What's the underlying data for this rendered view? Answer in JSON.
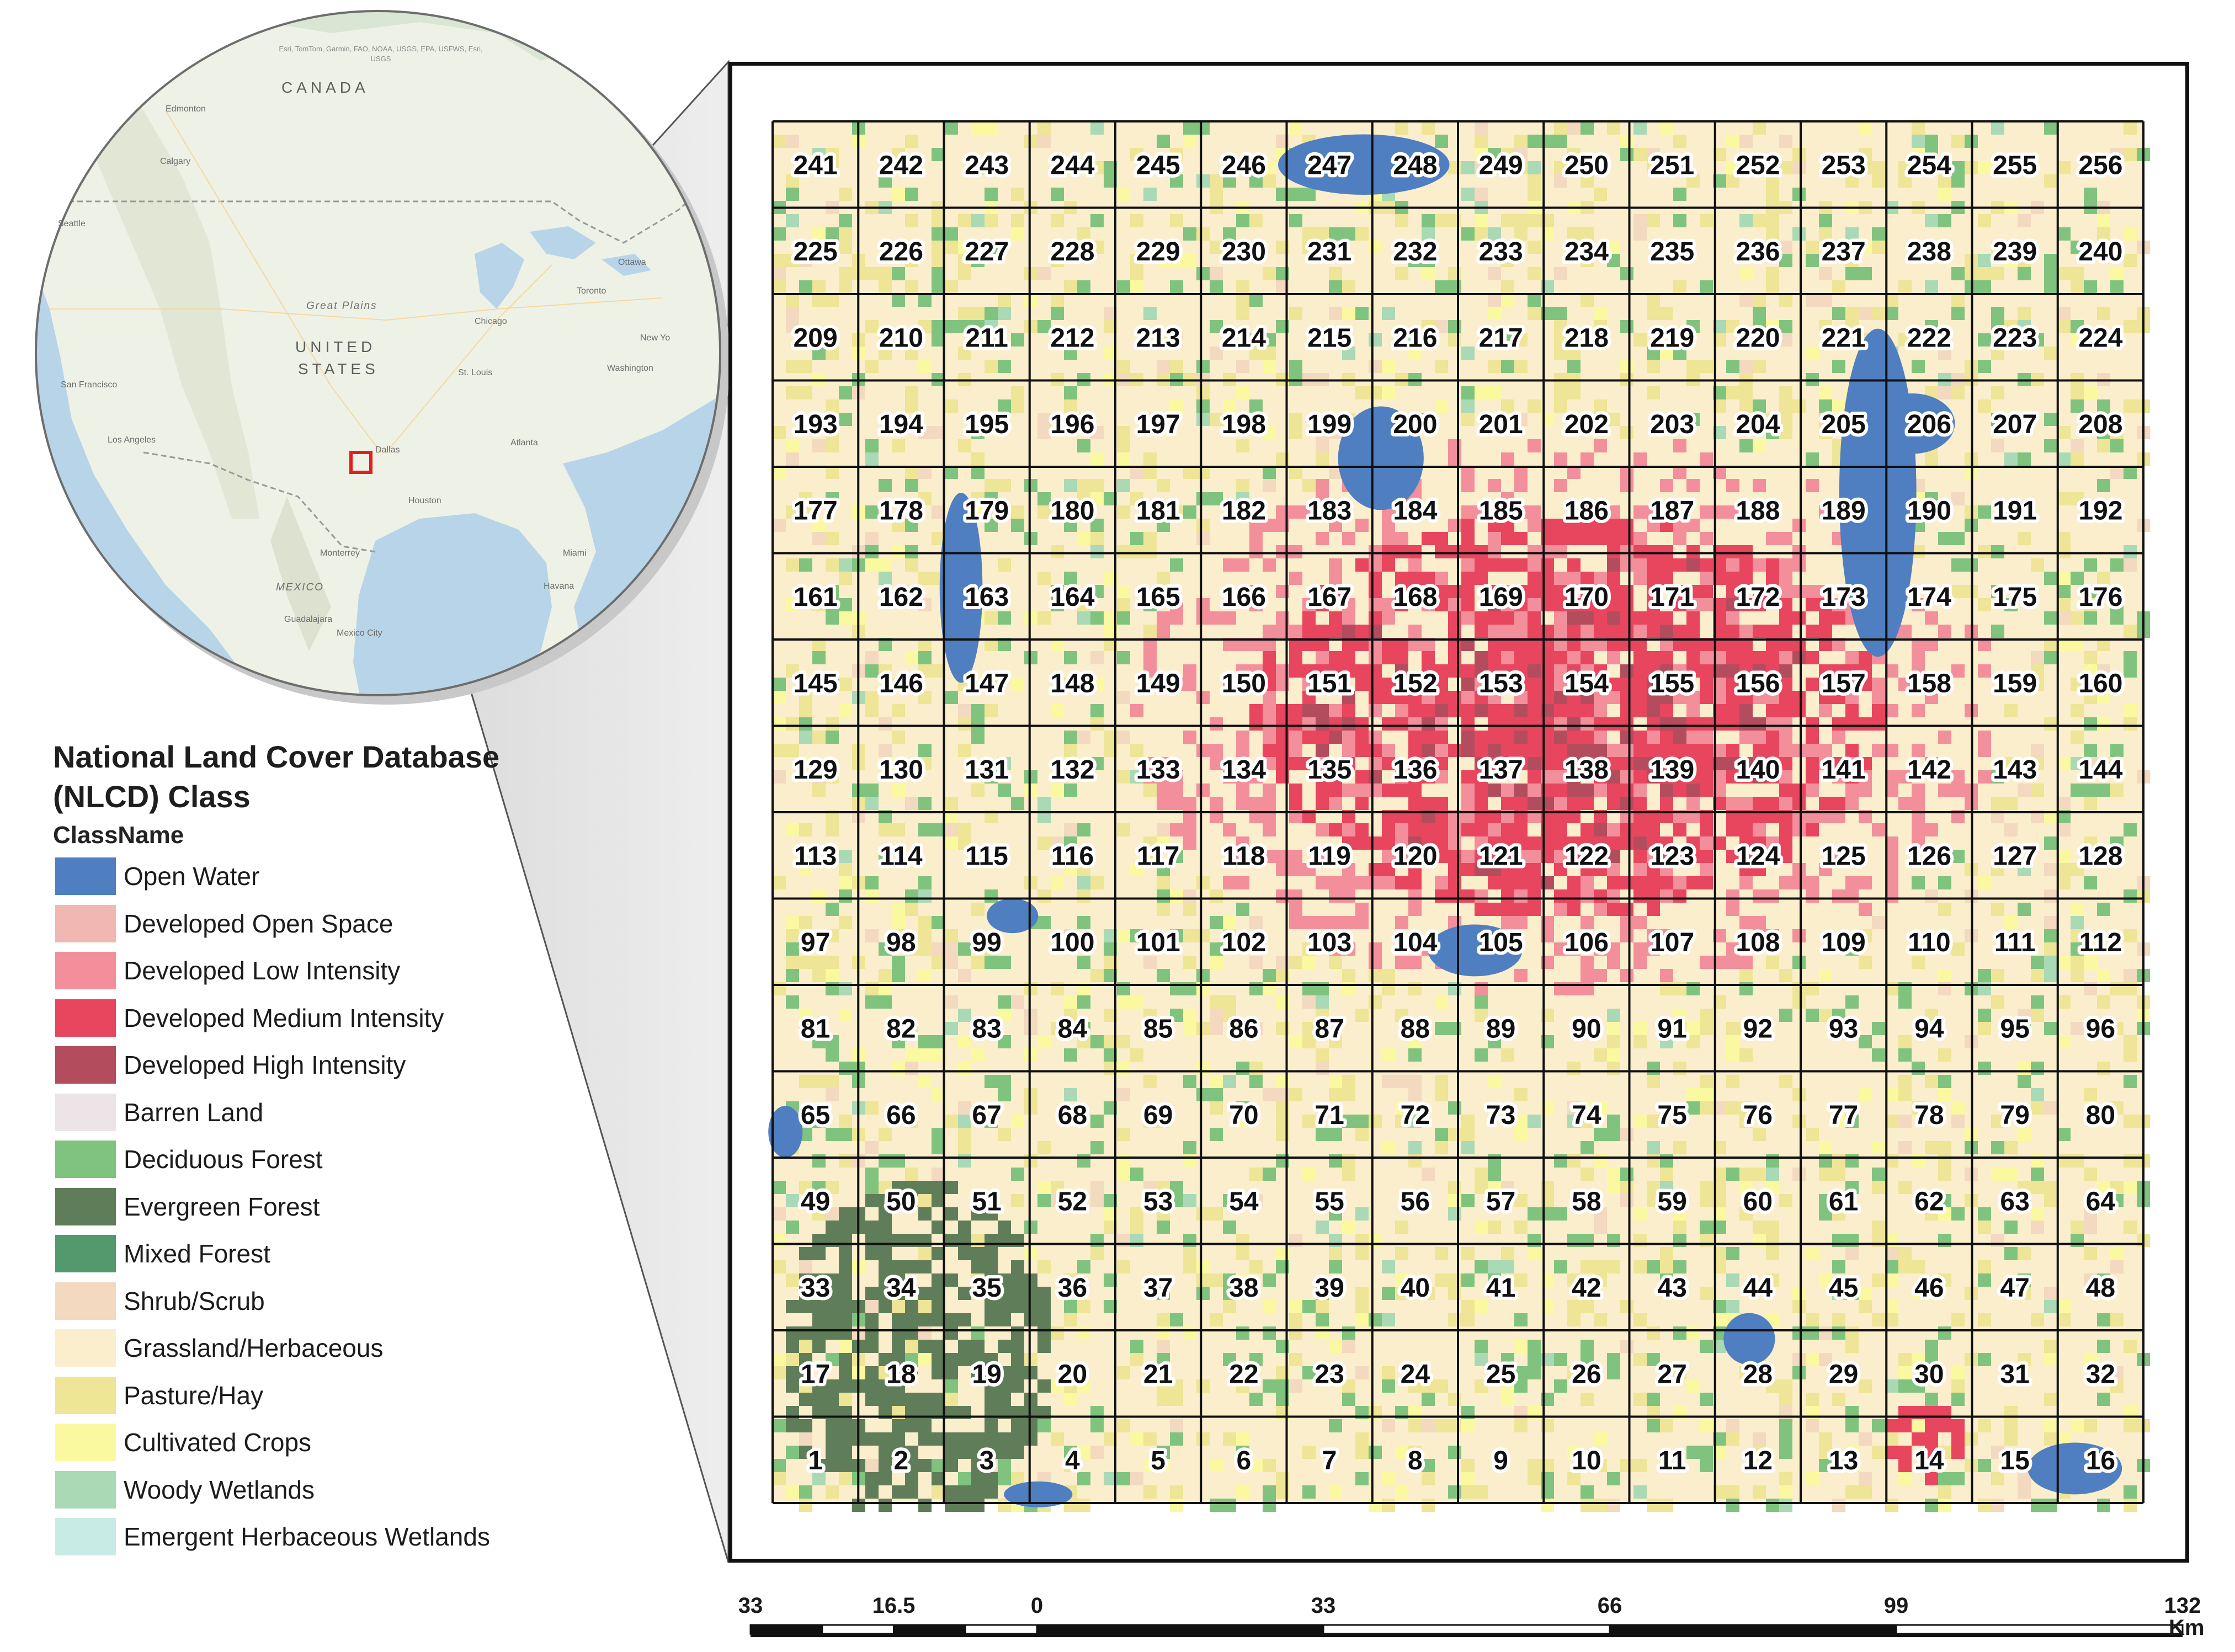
{
  "locator": {
    "attribution": "Esri, TomTom, Garmin, FAO, NOAA, USGS, EPA, USFWS, Esri, USGS",
    "country_canada": "CANADA",
    "country_us_line1": "UNITED",
    "country_us_line2": "STATES",
    "region_great_plains": "Great Plains",
    "region_mexico": "MEXICO",
    "cities": [
      "Edmonton",
      "Calgary",
      "Seattle",
      "Ottawa",
      "Toronto",
      "Chicago",
      "New Yo",
      "Washington",
      "St. Louis",
      "San Francisco",
      "Los Angeles",
      "Dallas",
      "Atlanta",
      "Houston",
      "Monterrey",
      "Miami",
      "Havana",
      "Guadalajara",
      "Mexico City"
    ],
    "colors": {
      "land": "#eef1e6",
      "water": "#b8d4e8",
      "border": "#9a9a9a",
      "study_area_marker": "#e0201e"
    }
  },
  "legend": {
    "title": "National Land Cover Database (NLCD) Class",
    "subtitle": "ClassName",
    "classes": [
      {
        "label": "Open Water",
        "color": "#4f7fc1"
      },
      {
        "label": "Developed Open Space",
        "color": "#f1b7b3"
      },
      {
        "label": "Developed Low Intensity",
        "color": "#f28f9a"
      },
      {
        "label": "Developed Medium Intensity",
        "color": "#e8455f"
      },
      {
        "label": "Developed High Intensity",
        "color": "#b34d5e"
      },
      {
        "label": "Barren Land",
        "color": "#ece4e6"
      },
      {
        "label": "Deciduous Forest",
        "color": "#80c37f"
      },
      {
        "label": "Evergreen Forest",
        "color": "#5f7d58"
      },
      {
        "label": "Mixed Forest",
        "color": "#529a6e"
      },
      {
        "label": "Shrub/Scrub",
        "color": "#f2d9c0"
      },
      {
        "label": "Grassland/Herbaceous",
        "color": "#fbeecd"
      },
      {
        "label": "Pasture/Hay",
        "color": "#eee596"
      },
      {
        "label": "Cultivated Crops",
        "color": "#fbf9a0"
      },
      {
        "label": "Woody Wetlands",
        "color": "#a9d9b5"
      },
      {
        "label": "Emergent Herbaceous Wetlands",
        "color": "#c9ebe5"
      }
    ]
  },
  "grid": {
    "rows": 16,
    "cols": 16,
    "numbering": "tiles numbered 1-256, row-major starting bottom-left"
  },
  "scale_bar": {
    "labels": [
      "33",
      "16.5",
      "0",
      "33",
      "66",
      "99",
      "132"
    ],
    "values": [
      -33,
      -16.5,
      0,
      33,
      66,
      99,
      132
    ],
    "unit": "Km"
  }
}
